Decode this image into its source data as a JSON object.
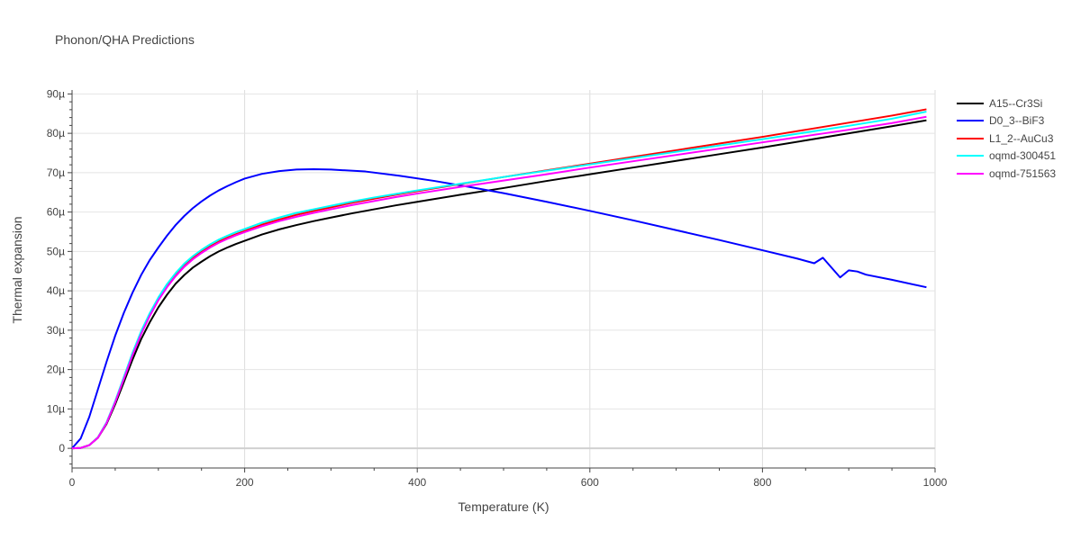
{
  "chart_data": {
    "type": "line",
    "title": "Phonon/QHA Predictions",
    "xlabel": "Temperature (K)",
    "ylabel": "Thermal expansion",
    "xlim": [
      0,
      1000
    ],
    "ylim": [
      -5,
      91
    ],
    "x_ticks": [
      0,
      200,
      400,
      600,
      800,
      1000
    ],
    "x_tick_labels": [
      "0",
      "200",
      "400",
      "600",
      "800",
      "1000"
    ],
    "y_ticks": [
      0,
      10,
      20,
      30,
      40,
      50,
      60,
      70,
      80,
      90
    ],
    "y_tick_labels": [
      "0",
      "10µ",
      "20µ",
      "30µ",
      "40µ",
      "50µ",
      "60µ",
      "70µ",
      "80µ",
      "90µ"
    ],
    "y_unit": "µ (1e-6 /K)",
    "grid": true,
    "legend_position": "right",
    "series": [
      {
        "name": "A15--Cr3Si",
        "color": "#000000",
        "x": [
          0,
          10,
          20,
          30,
          40,
          50,
          60,
          70,
          80,
          90,
          100,
          110,
          120,
          130,
          140,
          150,
          160,
          170,
          180,
          190,
          200,
          220,
          240,
          260,
          280,
          300,
          325,
          350,
          375,
          400,
          450,
          500,
          550,
          600,
          650,
          700,
          750,
          800,
          850,
          900,
          950,
          990
        ],
        "y": [
          0,
          0.1,
          0.8,
          2.7,
          6.2,
          11.2,
          16.8,
          22.5,
          27.7,
          32.0,
          35.8,
          39.0,
          41.8,
          44.0,
          45.9,
          47.4,
          48.8,
          50.0,
          51.0,
          51.9,
          52.7,
          54.3,
          55.6,
          56.7,
          57.7,
          58.6,
          59.7,
          60.7,
          61.7,
          62.6,
          64.4,
          66.1,
          67.9,
          69.6,
          71.3,
          73.0,
          74.7,
          76.4,
          78.2,
          80.0,
          81.8,
          83.3
        ]
      },
      {
        "name": "D0_3--BiF3",
        "color": "#0000ff",
        "x": [
          0,
          10,
          20,
          30,
          40,
          50,
          60,
          70,
          80,
          90,
          100,
          110,
          120,
          130,
          140,
          150,
          160,
          170,
          180,
          190,
          200,
          220,
          240,
          260,
          280,
          300,
          340,
          380,
          420,
          460,
          500,
          550,
          600,
          650,
          700,
          750,
          800,
          840,
          860,
          870,
          890,
          900,
          910,
          920,
          950,
          990
        ],
        "y": [
          0,
          2.5,
          8.0,
          15.0,
          22.0,
          28.6,
          34.4,
          39.5,
          44.0,
          47.8,
          51.0,
          54.0,
          56.7,
          59.0,
          61.0,
          62.7,
          64.2,
          65.5,
          66.6,
          67.6,
          68.5,
          69.7,
          70.4,
          70.8,
          70.9,
          70.8,
          70.3,
          69.2,
          67.9,
          66.4,
          64.8,
          62.6,
          60.3,
          57.9,
          55.4,
          52.9,
          50.3,
          48.2,
          47.0,
          48.4,
          43.4,
          45.2,
          44.9,
          44.1,
          42.8,
          40.9
        ]
      },
      {
        "name": "L1_2--AuCu3",
        "color": "#ff0000",
        "x": [
          0,
          10,
          20,
          30,
          40,
          50,
          60,
          70,
          80,
          90,
          100,
          110,
          120,
          130,
          140,
          150,
          160,
          170,
          180,
          190,
          200,
          220,
          240,
          260,
          280,
          300,
          325,
          350,
          375,
          400,
          450,
          500,
          550,
          600,
          650,
          700,
          750,
          800,
          850,
          900,
          950,
          990
        ],
        "y": [
          0,
          0.1,
          0.8,
          2.8,
          6.5,
          11.8,
          17.8,
          23.8,
          29.2,
          33.8,
          37.8,
          41.2,
          44.0,
          46.4,
          48.3,
          49.9,
          51.3,
          52.5,
          53.5,
          54.4,
          55.2,
          56.8,
          58.1,
          59.3,
          60.3,
          61.2,
          62.4,
          63.4,
          64.4,
          65.3,
          67.1,
          68.9,
          70.6,
          72.3,
          74.0,
          75.7,
          77.4,
          79.1,
          80.9,
          82.7,
          84.5,
          86.1
        ]
      },
      {
        "name": "oqmd-300451",
        "color": "#00ffff",
        "x": [
          0,
          10,
          20,
          30,
          40,
          50,
          60,
          70,
          80,
          90,
          100,
          110,
          120,
          130,
          140,
          150,
          160,
          170,
          180,
          190,
          200,
          220,
          240,
          260,
          280,
          300,
          325,
          350,
          375,
          400,
          450,
          500,
          550,
          600,
          650,
          700,
          750,
          800,
          850,
          900,
          950,
          990
        ],
        "y": [
          0,
          0.1,
          0.8,
          2.8,
          6.6,
          12.0,
          18.1,
          24.2,
          29.7,
          34.3,
          38.3,
          41.7,
          44.5,
          46.9,
          48.8,
          50.4,
          51.8,
          53.0,
          54.0,
          54.9,
          55.7,
          57.3,
          58.6,
          59.8,
          60.7,
          61.6,
          62.7,
          63.7,
          64.6,
          65.5,
          67.2,
          68.9,
          70.5,
          72.1,
          73.7,
          75.3,
          76.9,
          78.5,
          80.2,
          81.9,
          83.7,
          85.5
        ]
      },
      {
        "name": "oqmd-751563",
        "color": "#ff00ff",
        "x": [
          0,
          10,
          20,
          30,
          40,
          50,
          60,
          70,
          80,
          90,
          100,
          110,
          120,
          130,
          140,
          150,
          160,
          170,
          180,
          190,
          200,
          220,
          240,
          260,
          280,
          300,
          325,
          350,
          375,
          400,
          450,
          500,
          550,
          600,
          650,
          700,
          750,
          800,
          850,
          900,
          950,
          990
        ],
        "y": [
          0,
          0.1,
          0.8,
          2.7,
          6.4,
          11.7,
          17.6,
          23.6,
          29.0,
          33.6,
          37.6,
          40.9,
          43.7,
          46.1,
          48.0,
          49.6,
          51.0,
          52.2,
          53.2,
          54.1,
          54.9,
          56.4,
          57.7,
          58.8,
          59.8,
          60.7,
          61.8,
          62.8,
          63.8,
          64.7,
          66.4,
          68.0,
          69.6,
          71.3,
          72.9,
          74.5,
          76.1,
          77.7,
          79.3,
          80.9,
          82.6,
          84.2
        ]
      }
    ]
  }
}
